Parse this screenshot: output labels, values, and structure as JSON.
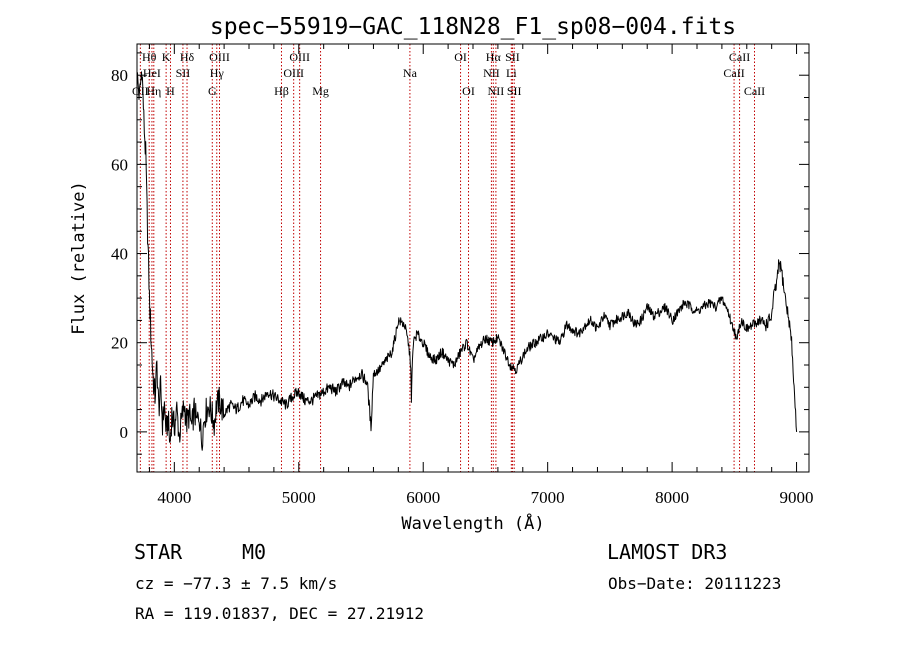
{
  "chart_data": {
    "type": "line",
    "title": "spec−55919−GAC_118N28_F1_sp08−004.fits",
    "xlabel": "Wavelength (Å)",
    "ylabel": "Flux (relative)",
    "xlim": [
      3700,
      9100
    ],
    "ylim": [
      -9,
      87
    ],
    "xticks": [
      4000,
      5000,
      6000,
      7000,
      8000,
      9000
    ],
    "yticks": [
      0,
      20,
      40,
      60,
      80
    ],
    "line_color": "#000000",
    "marker_color": "#c00000",
    "series": [
      {
        "name": "flux",
        "x": [
          3700,
          3720,
          3740,
          3755,
          3770,
          3785,
          3800,
          3815,
          3830,
          3845,
          3860,
          3875,
          3890,
          3905,
          3920,
          3935,
          3950,
          3965,
          3980,
          4000,
          4020,
          4040,
          4060,
          4080,
          4100,
          4120,
          4140,
          4160,
          4180,
          4200,
          4220,
          4240,
          4260,
          4280,
          4300,
          4320,
          4340,
          4360,
          4400,
          4450,
          4500,
          4550,
          4600,
          4650,
          4700,
          4750,
          4800,
          4850,
          4900,
          4950,
          5000,
          5050,
          5100,
          5150,
          5200,
          5250,
          5300,
          5350,
          5400,
          5450,
          5500,
          5550,
          5580,
          5600,
          5650,
          5700,
          5750,
          5780,
          5800,
          5850,
          5880,
          5900,
          5905,
          5910,
          5920,
          5950,
          6000,
          6050,
          6100,
          6150,
          6200,
          6250,
          6300,
          6350,
          6400,
          6450,
          6500,
          6550,
          6600,
          6650,
          6700,
          6750,
          6800,
          6850,
          6900,
          6950,
          7000,
          7050,
          7100,
          7150,
          7200,
          7250,
          7300,
          7350,
          7400,
          7450,
          7500,
          7550,
          7600,
          7650,
          7700,
          7750,
          7800,
          7850,
          7900,
          7950,
          8000,
          8050,
          8100,
          8150,
          8200,
          8250,
          8300,
          8350,
          8400,
          8450,
          8480,
          8500,
          8520,
          8540,
          8560,
          8600,
          8650,
          8700,
          8750,
          8780,
          8800,
          8820,
          8840,
          8860,
          8880,
          8900,
          8920,
          8940,
          8960,
          8980,
          9000
        ],
        "values": [
          80,
          75,
          82,
          70,
          62,
          45,
          30,
          20,
          12,
          8,
          15,
          5,
          10,
          2,
          6,
          0,
          3,
          -3,
          4,
          1,
          5,
          -1,
          3,
          6,
          2,
          4,
          1,
          5,
          2,
          4,
          -2,
          3,
          5,
          6,
          4,
          2,
          6,
          7,
          4,
          6,
          5,
          7,
          6,
          8,
          7,
          9,
          8,
          7,
          6,
          8,
          9,
          7,
          7,
          8,
          9,
          10,
          9,
          11,
          10,
          12,
          13,
          11,
          1,
          13,
          14,
          16,
          18,
          22,
          25,
          24,
          20,
          15,
          6,
          13,
          20,
          22,
          20,
          17,
          16,
          18,
          16,
          15,
          18,
          20,
          16,
          19,
          21,
          20,
          21,
          18,
          15,
          14,
          17,
          19,
          20,
          21,
          22,
          21,
          20,
          24,
          23,
          22,
          24,
          25,
          23,
          26,
          24,
          25,
          26,
          27,
          24,
          25,
          28,
          26,
          27,
          28,
          25,
          27,
          29,
          28,
          27,
          28,
          29,
          28,
          30,
          27,
          24,
          23,
          20,
          24,
          25,
          23,
          24,
          25,
          24,
          25,
          26,
          31,
          33,
          38,
          36,
          32,
          28,
          25,
          20,
          10,
          0
        ]
      }
    ],
    "line_markers": [
      {
        "label": "OII",
        "x": 3727,
        "row": 3
      },
      {
        "label": "Hθ",
        "x": 3798,
        "row": 1
      },
      {
        "label": "HeI",
        "x": 3820,
        "row": 2
      },
      {
        "label": "Hη",
        "x": 3835,
        "row": 3
      },
      {
        "label": "K",
        "x": 3934,
        "row": 1
      },
      {
        "label": "SII",
        "x": 4069,
        "row": 2
      },
      {
        "label": "H",
        "x": 3969,
        "row": 3
      },
      {
        "label": "Hδ",
        "x": 4102,
        "row": 1
      },
      {
        "label": "OIII",
        "x": 4363,
        "row": 1
      },
      {
        "label": "Hγ",
        "x": 4341,
        "row": 2
      },
      {
        "label": "G",
        "x": 4305,
        "row": 3
      },
      {
        "label": "Hβ",
        "x": 4861,
        "row": 3
      },
      {
        "label": "OIII",
        "x": 5007,
        "row": 1
      },
      {
        "label": "OIII",
        "x": 4959,
        "row": 2
      },
      {
        "label": "Mg",
        "x": 5175,
        "row": 3
      },
      {
        "label": "Na",
        "x": 5893,
        "row": 2
      },
      {
        "label": "OI",
        "x": 6300,
        "row": 1
      },
      {
        "label": "OI",
        "x": 6364,
        "row": 3
      },
      {
        "label": "Hα",
        "x": 6563,
        "row": 1
      },
      {
        "label": "NII",
        "x": 6548,
        "row": 2
      },
      {
        "label": "NII",
        "x": 6584,
        "row": 3
      },
      {
        "label": "SII",
        "x": 6717,
        "row": 1
      },
      {
        "label": "Li",
        "x": 6708,
        "row": 2
      },
      {
        "label": "SII",
        "x": 6731,
        "row": 3
      },
      {
        "label": "CaII",
        "x": 8542,
        "row": 1
      },
      {
        "label": "CaII",
        "x": 8498,
        "row": 2
      },
      {
        "label": "CaII",
        "x": 8662,
        "row": 3
      }
    ]
  },
  "info": {
    "class": "STAR",
    "subclass": "M0",
    "survey": "LAMOST DR3",
    "cz": "cz = −77.3 ± 7.5 km/s",
    "obs_date": "Obs−Date: 20111223",
    "coords": "RA = 119.01837, DEC =  27.21912"
  }
}
